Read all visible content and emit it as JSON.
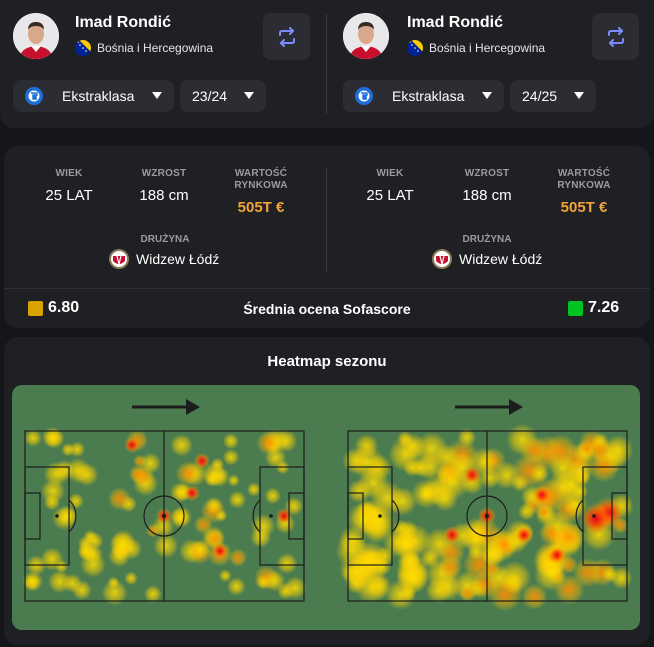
{
  "players": [
    {
      "name": "Imad Rondić",
      "country": "Bośnia i Hercegowina",
      "league": "Ekstraklasa",
      "season": "23/24",
      "stats": {
        "age_label": "WIEK",
        "age_value": "25 LAT",
        "height_label": "WZROST",
        "height_value": "188 cm",
        "value_label_line1": "WARTOŚĆ",
        "value_label_line2": "RYNKOWA",
        "value_value": "505T €",
        "team_label": "DRUŻYNA",
        "team_value": "Widzew Łódź"
      },
      "rating": "6.80",
      "rating_color": "#d9a400"
    },
    {
      "name": "Imad Rondić",
      "country": "Bośnia i Hercegowina",
      "league": "Ekstraklasa",
      "season": "24/25",
      "stats": {
        "age_label": "WIEK",
        "age_value": "25 LAT",
        "height_label": "WZROST",
        "height_value": "188 cm",
        "value_label_line1": "WARTOŚĆ",
        "value_label_line2": "RYNKOWA",
        "value_value": "505T €",
        "team_label": "DRUŻYNA",
        "team_value": "Widzew Łódź"
      },
      "rating": "7.26",
      "rating_color": "#00c424"
    }
  ],
  "rating_title": "Średnia ocena Sofascore",
  "heatmap_title": "Heatmap sezonu",
  "icons": {
    "swap": "swap-arrows-icon",
    "dropdown": "caret-down-icon",
    "league": "ekstraklasa-logo",
    "flag": "bosnia-flag-icon",
    "crest": "widzew-crest",
    "direction": "attack-direction-arrow-icon"
  },
  "colors": {
    "background": "#15161a",
    "card": "#1f2024",
    "control": "#2c2d33",
    "muted": "#9a9ba1",
    "market_value": "#f2a33a",
    "swap_icon": "#7a8cff",
    "pitch": "#4b7c4f"
  }
}
